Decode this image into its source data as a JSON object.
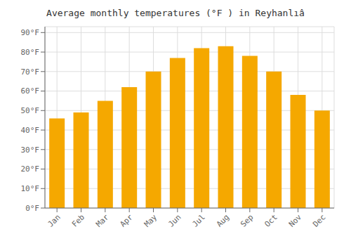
{
  "chart_data": {
    "type": "bar",
    "title": "Average monthly temperatures (°F ) in Reyhanlıâ",
    "categories": [
      "Jan",
      "Feb",
      "Mar",
      "Apr",
      "May",
      "Jun",
      "Jul",
      "Aug",
      "Sep",
      "Oct",
      "Nov",
      "Dec"
    ],
    "values": [
      46,
      49,
      55,
      62,
      70,
      77,
      82,
      83,
      78,
      70,
      58,
      50
    ],
    "color": "#F5A800",
    "ylim": [
      0,
      93
    ],
    "yticks": [
      {
        "value": 0,
        "label": "0°F"
      },
      {
        "value": 10,
        "label": "10°F"
      },
      {
        "value": 20,
        "label": "20°F"
      },
      {
        "value": 30,
        "label": "30°F"
      },
      {
        "value": 40,
        "label": "40°F"
      },
      {
        "value": 50,
        "label": "50°F"
      },
      {
        "value": 60,
        "label": "60°F"
      },
      {
        "value": 70,
        "label": "70°F"
      },
      {
        "value": 80,
        "label": "80°F"
      },
      {
        "value": 90,
        "label": "90°F"
      }
    ],
    "grid": true
  }
}
